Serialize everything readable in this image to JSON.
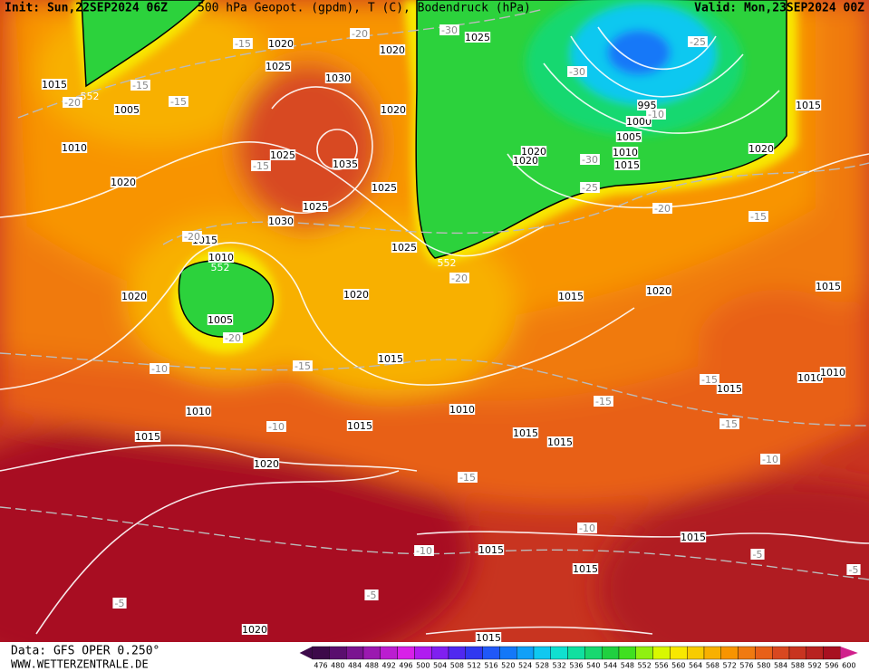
{
  "header": {
    "init": "Init: Sun,22SEP2024 06Z",
    "title": "500 hPa Geopot. (gpdm), T (C), Bodendruck (hPa)",
    "valid": "Valid: Mon,23SEP2024 00Z"
  },
  "map": {
    "pressure_labels": [
      "1020",
      "1025",
      "1030",
      "1020",
      "1025",
      "1015",
      "1005",
      "1010",
      "1020",
      "1025",
      "1035",
      "1020",
      "1025",
      "1025",
      "1030",
      "1015",
      "1025",
      "1010",
      "1020",
      "1005",
      "1020",
      "1015",
      "1020",
      "1015",
      "1010",
      "1015",
      "1010",
      "1015",
      "1015",
      "1015",
      "1020",
      "1015",
      "1015",
      "1015",
      "1020",
      "1015",
      "995",
      "1000",
      "1005",
      "1010",
      "1015",
      "1020",
      "1020",
      "1020",
      "1015",
      "1015",
      "1015",
      "1010",
      "1010"
    ],
    "temperature_labels": [
      "-20",
      "-30",
      "-15",
      "-15",
      "-20",
      "-15",
      "-15",
      "-30",
      "-25",
      "-10",
      "-30",
      "-25",
      "-20",
      "-15",
      "-20",
      "-20",
      "-20",
      "-15",
      "-10",
      "-15",
      "-15",
      "-15",
      "-10",
      "-10",
      "-15",
      "-10",
      "-10",
      "-5",
      "-5",
      "-5",
      "-5"
    ],
    "geopotential_labels": [
      "552",
      "552",
      "552"
    ]
  },
  "legend": {
    "levels": [
      476,
      480,
      484,
      488,
      492,
      496,
      500,
      504,
      508,
      512,
      516,
      520,
      524,
      528,
      532,
      536,
      540,
      544,
      548,
      552,
      556,
      560,
      564,
      568,
      572,
      576,
      580,
      584,
      588,
      592,
      596,
      600
    ],
    "colors": [
      "#3d0a4a",
      "#5a0f6e",
      "#7a1490",
      "#9b19b0",
      "#bb1ed0",
      "#d820e8",
      "#b01cf0",
      "#8020f0",
      "#5028f0",
      "#3038f0",
      "#2058f8",
      "#1478f8",
      "#10a0f8",
      "#10c8f0",
      "#10e0d0",
      "#10e0a0",
      "#18d870",
      "#20d040",
      "#40e020",
      "#90f010",
      "#d8f800",
      "#f8e800",
      "#f8cc00",
      "#f8b000",
      "#f89400",
      "#f07a10",
      "#e86018",
      "#d84820",
      "#c83420",
      "#b82220",
      "#a81020",
      "#d0208c"
    ]
  },
  "footer": {
    "source": "Data: GFS OPER 0.250°",
    "site": "WWW.WETTERZENTRALE.DE"
  }
}
